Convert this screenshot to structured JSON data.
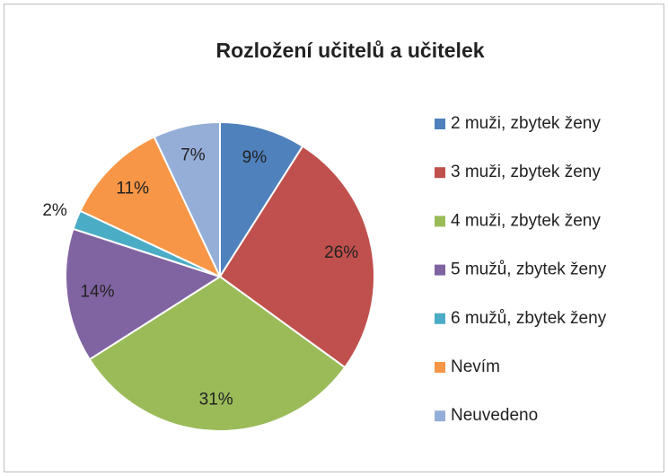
{
  "chart_data": {
    "type": "pie",
    "title": "Rozložení učitelů a učitelek",
    "categories": [
      "2 muži, zbytek ženy",
      "3 muži, zbytek ženy",
      "4 muži, zbytek ženy",
      "5 mužů, zbytek ženy",
      "6 mužů, zbytek ženy",
      "Nevím",
      "Neuvedeno"
    ],
    "values": [
      9,
      26,
      31,
      14,
      2,
      11,
      7
    ],
    "value_labels": [
      "9%",
      "26%",
      "31%",
      "14%",
      "2%",
      "11%",
      "7%"
    ],
    "colors": [
      "#4f81bd",
      "#c0504d",
      "#9bbb59",
      "#8064a2",
      "#4bacc6",
      "#f79646",
      "#95aed8"
    ],
    "legend": "right"
  }
}
